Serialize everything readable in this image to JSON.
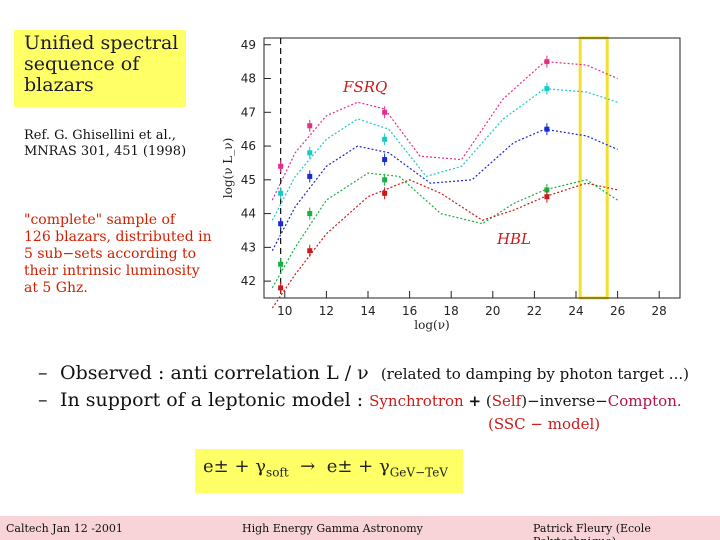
{
  "title": "Unified spectral\nsequence of\nblazars",
  "reference": "Ref.  G. Ghisellini et al.,\nMNRAS  301, 451  (1998)",
  "description": "\"complete\" sample of\n126 blazars, distributed in\n5 sub−sets according to\ntheir intrinsic luminosity\nat 5 Ghz.",
  "bullets": {
    "dash": "–",
    "b1_main": "Observed : anti correlation L / ν",
    "b1_note": "(related to damping by photon target ...)",
    "b2_main": "In support of a leptonic model :",
    "b2_synch": "Synchrotron",
    "b2_plus": "+",
    "b2_self_open": "(",
    "b2_self": "Self",
    "b2_self_close": ")−inverse−",
    "b2_compton": "Compton.",
    "ssc": "(SSC − model)"
  },
  "formula": {
    "lhs": "e± + γ",
    "lhs_sub": "soft",
    "arrow": "→",
    "rhs": "e± + γ",
    "rhs_sub": "GeV−TeV"
  },
  "footer": {
    "left": "Caltech Jan 12 -2001",
    "center": "High Energy Gamma Astronomy",
    "right": "Patrick Fleury (Ecole Polytechnique)"
  },
  "chart_data": {
    "type": "line",
    "xlabel": "log(ν)",
    "ylabel": "log(ν L_ν)",
    "xlim": [
      9,
      29
    ],
    "ylim": [
      41.5,
      49.2
    ],
    "x_ticks": [
      10,
      12,
      14,
      16,
      18,
      20,
      22,
      24,
      26,
      28
    ],
    "y_ticks": [
      42,
      43,
      44,
      45,
      46,
      47,
      48,
      49
    ],
    "x_tick_labels": [
      "10",
      "12",
      "14",
      "16",
      "18",
      "20",
      "22",
      "24",
      "26",
      "28"
    ],
    "y_tick_labels": [
      "42",
      "43",
      "44",
      "45",
      "46",
      "47",
      "48",
      "49"
    ],
    "annotations": [
      {
        "text": "FSRQ",
        "x": 12.8,
        "y": 47.6,
        "color": "#cc1a1a"
      },
      {
        "text": "HBL",
        "x": 20.2,
        "y": 43.1,
        "color": "#cc1a1a"
      }
    ],
    "highlight_band": {
      "x": [
        24.2,
        25.5
      ],
      "color": "#f2e030"
    },
    "dashed_vline": 9.8,
    "series": [
      {
        "color": "#e0308c",
        "points": [
          [
            9.8,
            45.4
          ],
          [
            11.2,
            46.6
          ],
          [
            14.8,
            47.0
          ],
          [
            22.6,
            48.5
          ]
        ],
        "curve": [
          [
            9.4,
            44.4
          ],
          [
            10.5,
            45.8
          ],
          [
            12,
            46.9
          ],
          [
            13.5,
            47.3
          ],
          [
            14.8,
            47.1
          ],
          [
            16.5,
            45.7
          ],
          [
            18.5,
            45.6
          ],
          [
            20.5,
            47.4
          ],
          [
            22.5,
            48.5
          ],
          [
            24.5,
            48.4
          ],
          [
            26,
            48.0
          ]
        ]
      },
      {
        "color": "#19c8c8",
        "points": [
          [
            9.8,
            44.6
          ],
          [
            11.2,
            45.8
          ],
          [
            14.8,
            46.2
          ],
          [
            22.6,
            47.7
          ]
        ],
        "curve": [
          [
            9.4,
            43.8
          ],
          [
            10.5,
            45.1
          ],
          [
            12,
            46.2
          ],
          [
            13.5,
            46.8
          ],
          [
            15,
            46.5
          ],
          [
            16.8,
            45.1
          ],
          [
            18.5,
            45.4
          ],
          [
            20.5,
            46.8
          ],
          [
            22.5,
            47.7
          ],
          [
            24.5,
            47.6
          ],
          [
            26,
            47.3
          ]
        ]
      },
      {
        "color": "#1a2ad0",
        "points": [
          [
            9.8,
            43.7
          ],
          [
            11.2,
            45.1
          ],
          [
            14.8,
            45.6
          ],
          [
            22.6,
            46.5
          ]
        ],
        "curve": [
          [
            9.4,
            42.9
          ],
          [
            10.5,
            44.2
          ],
          [
            12,
            45.4
          ],
          [
            13.5,
            46.0
          ],
          [
            15,
            45.8
          ],
          [
            17,
            44.9
          ],
          [
            19,
            45.0
          ],
          [
            21,
            46.1
          ],
          [
            22.5,
            46.5
          ],
          [
            24.5,
            46.3
          ],
          [
            26,
            45.9
          ]
        ]
      },
      {
        "color": "#18b040",
        "points": [
          [
            9.8,
            42.5
          ],
          [
            11.2,
            44.0
          ],
          [
            14.8,
            45.0
          ],
          [
            22.6,
            44.7
          ]
        ],
        "curve": [
          [
            9.4,
            41.8
          ],
          [
            10.5,
            43.0
          ],
          [
            12,
            44.4
          ],
          [
            14,
            45.2
          ],
          [
            15.5,
            45.1
          ],
          [
            17.5,
            44.0
          ],
          [
            19.5,
            43.7
          ],
          [
            21,
            44.3
          ],
          [
            22.5,
            44.7
          ],
          [
            24.5,
            45.0
          ],
          [
            26,
            44.4
          ]
        ]
      },
      {
        "color": "#cc1a1a",
        "points": [
          [
            9.8,
            41.8
          ],
          [
            11.2,
            42.9
          ],
          [
            14.8,
            44.6
          ],
          [
            22.6,
            44.5
          ]
        ],
        "curve": [
          [
            9.4,
            41.2
          ],
          [
            10.5,
            42.2
          ],
          [
            12,
            43.4
          ],
          [
            14,
            44.5
          ],
          [
            16,
            45.0
          ],
          [
            17.5,
            44.6
          ],
          [
            19.5,
            43.8
          ],
          [
            21,
            44.1
          ],
          [
            22.5,
            44.5
          ],
          [
            24.5,
            44.9
          ],
          [
            26,
            44.7
          ]
        ]
      }
    ]
  }
}
